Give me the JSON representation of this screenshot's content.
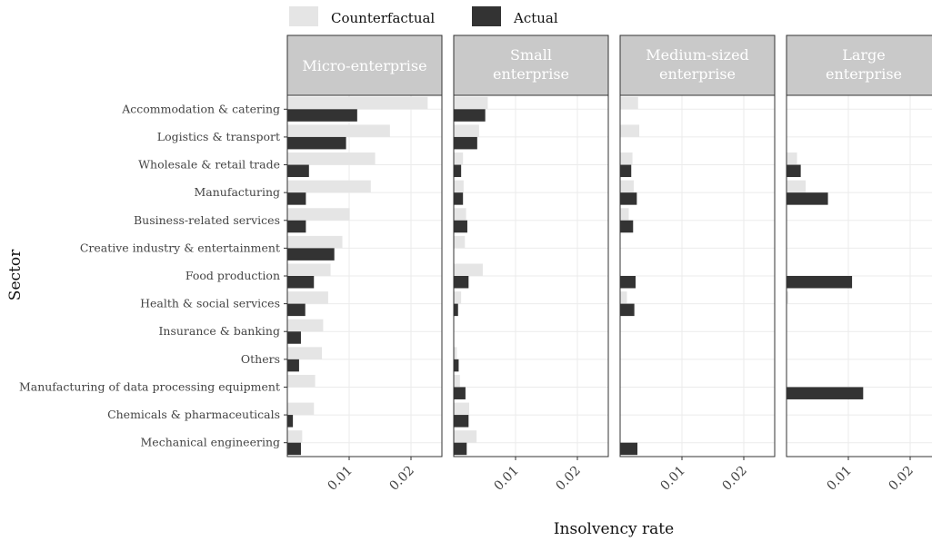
{
  "legend": {
    "items": [
      {
        "label": "Counterfactual",
        "color": "#e5e5e5"
      },
      {
        "label": "Actual",
        "color": "#333333"
      }
    ]
  },
  "chart_data": {
    "type": "bar",
    "orientation": "horizontal",
    "xlabel": "Insolvency rate",
    "ylabel": "Sector",
    "xlim": [
      0,
      0.025
    ],
    "x_ticks": [
      0.01,
      0.02
    ],
    "x_tick_labels": [
      "0.01",
      "0.02"
    ],
    "grid": true,
    "legend_position": "top",
    "categories": [
      "Accommodation & catering",
      "Logistics & transport",
      "Wholesale & retail trade",
      "Manufacturing",
      "Business-related services",
      "Creative industry & entertainment",
      "Food production",
      "Health & social services",
      "Insurance & banking",
      "Others",
      "Manufacturing of data processing equipment",
      "Chemicals & pharmaceuticals",
      "Mechanical engineering"
    ],
    "panels": [
      {
        "title": "Micro-enterprise",
        "series": [
          {
            "name": "Counterfactual",
            "values": [
              0.0227,
              0.0166,
              0.0142,
              0.0135,
              0.0101,
              0.0089,
              0.007,
              0.0066,
              0.0058,
              0.0056,
              0.0045,
              0.0043,
              0.0024
            ]
          },
          {
            "name": "Actual",
            "values": [
              0.0113,
              0.0095,
              0.0035,
              0.003,
              0.003,
              0.0076,
              0.0043,
              0.0029,
              0.0022,
              0.0019,
              0.0,
              0.0009,
              0.0022
            ]
          }
        ]
      },
      {
        "title": "Small enterprise",
        "series": [
          {
            "name": "Counterfactual",
            "values": [
              0.0055,
              0.0041,
              0.0015,
              0.0016,
              0.002,
              0.0018,
              0.0047,
              0.0012,
              0.0,
              0.0005,
              0.001,
              0.0025,
              0.0037
            ]
          },
          {
            "name": "Actual",
            "values": [
              0.0051,
              0.0038,
              0.0012,
              0.0015,
              0.0022,
              0.0,
              0.0024,
              0.0007,
              0.0,
              0.0008,
              0.0019,
              0.0024,
              0.0021
            ]
          }
        ]
      },
      {
        "title": "Medium-sized enterprise",
        "series": [
          {
            "name": "Counterfactual",
            "values": [
              0.0029,
              0.0031,
              0.002,
              0.0022,
              0.0014,
              0.0,
              0.0,
              0.0011,
              0.0,
              0.0,
              0.0,
              0.0,
              0.0
            ]
          },
          {
            "name": "Actual",
            "values": [
              0.0,
              0.0,
              0.0018,
              0.0027,
              0.0021,
              0.0,
              0.0025,
              0.0023,
              0.0,
              0.0,
              0.0,
              0.0,
              0.0028
            ]
          }
        ]
      },
      {
        "title": "Large enterprise",
        "series": [
          {
            "name": "Counterfactual",
            "values": [
              0.0,
              0.0,
              0.0017,
              0.0031,
              0.0,
              0.0,
              0.0,
              0.0003,
              0.0,
              0.0,
              0.0,
              0.0,
              0.0
            ]
          },
          {
            "name": "Actual",
            "values": [
              0.0,
              0.0,
              0.0023,
              0.0067,
              0.0,
              0.0,
              0.0106,
              0.0,
              0.0,
              0.0,
              0.0124,
              0.0,
              0.0
            ]
          }
        ]
      }
    ]
  }
}
